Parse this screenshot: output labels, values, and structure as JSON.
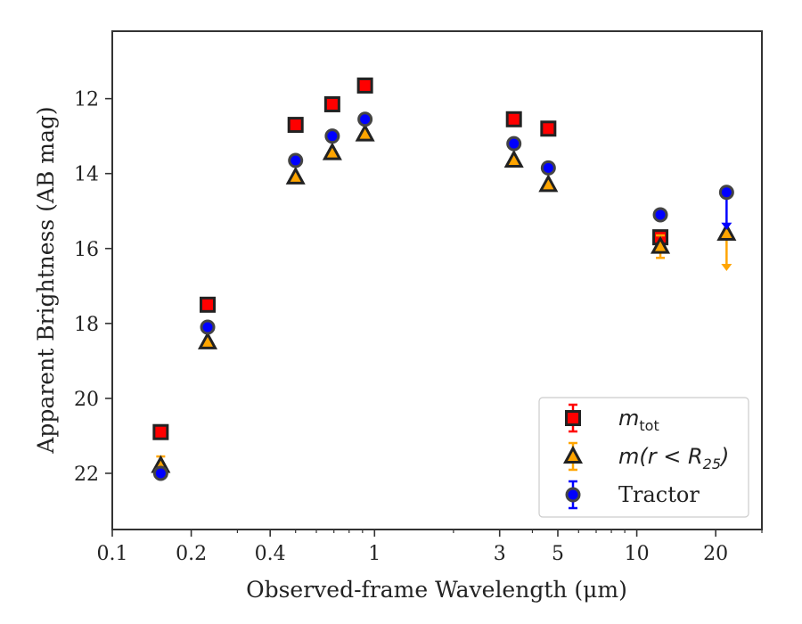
{
  "chart_data": {
    "type": "scatter",
    "xlabel": "Observed-frame Wavelength (μm)",
    "ylabel": "Apparent Brightness (AB mag)",
    "xscale": "log",
    "xlim": [
      0.1,
      30
    ],
    "ylim": [
      23.5,
      10.2
    ],
    "y_inverted": true,
    "xticks": [
      {
        "value": 0.1,
        "label": "0.1"
      },
      {
        "value": 0.2,
        "label": "0.2"
      },
      {
        "value": 0.4,
        "label": "0.4"
      },
      {
        "value": 1,
        "label": "1"
      },
      {
        "value": 3,
        "label": "3"
      },
      {
        "value": 5,
        "label": "5"
      },
      {
        "value": 10,
        "label": "10"
      },
      {
        "value": 20,
        "label": "20"
      }
    ],
    "yticks": [
      {
        "value": 12,
        "label": "12"
      },
      {
        "value": 14,
        "label": "14"
      },
      {
        "value": 16,
        "label": "16"
      },
      {
        "value": 18,
        "label": "18"
      },
      {
        "value": 20,
        "label": "20"
      },
      {
        "value": 22,
        "label": "22"
      }
    ],
    "legend_position": "bottom-right",
    "series": [
      {
        "key": "mtot",
        "legend": {
          "math": "m",
          "sub": "tot"
        },
        "marker": "square",
        "color": "#ff0000",
        "edge": "#222222",
        "points": [
          {
            "x": 0.153,
            "y": 20.9
          },
          {
            "x": 0.231,
            "y": 17.5
          },
          {
            "x": 0.5,
            "y": 12.7
          },
          {
            "x": 0.69,
            "y": 12.15
          },
          {
            "x": 0.92,
            "y": 11.65
          },
          {
            "x": 3.4,
            "y": 12.55
          },
          {
            "x": 4.6,
            "y": 12.8
          },
          {
            "x": 12.3,
            "y": 15.7
          }
        ]
      },
      {
        "key": "mr25",
        "legend": {
          "math": "m(r < R",
          "sub": "25",
          "tail": ")"
        },
        "marker": "triangle",
        "color": "#ffa500",
        "edge": "#222222",
        "points": [
          {
            "x": 0.153,
            "y": 21.8,
            "err": 0.25
          },
          {
            "x": 0.231,
            "y": 18.5
          },
          {
            "x": 0.5,
            "y": 14.1
          },
          {
            "x": 0.69,
            "y": 13.45
          },
          {
            "x": 0.92,
            "y": 12.95
          },
          {
            "x": 3.4,
            "y": 13.65
          },
          {
            "x": 4.6,
            "y": 14.3
          },
          {
            "x": 12.3,
            "y": 15.95,
            "err": 0.3
          },
          {
            "x": 22,
            "y": 15.6,
            "upper_limit_to": 16.6
          }
        ]
      },
      {
        "key": "tractor",
        "legend": {
          "text": "Tractor"
        },
        "marker": "circle",
        "color": "#0000ff",
        "edge": "#444444",
        "points": [
          {
            "x": 0.153,
            "y": 22.0
          },
          {
            "x": 0.231,
            "y": 18.1
          },
          {
            "x": 0.5,
            "y": 13.65
          },
          {
            "x": 0.69,
            "y": 13.0
          },
          {
            "x": 0.92,
            "y": 12.55
          },
          {
            "x": 3.4,
            "y": 13.2
          },
          {
            "x": 4.6,
            "y": 13.85
          },
          {
            "x": 12.3,
            "y": 15.1
          },
          {
            "x": 22,
            "y": 14.5,
            "upper_limit_to": 15.5
          }
        ]
      }
    ]
  }
}
